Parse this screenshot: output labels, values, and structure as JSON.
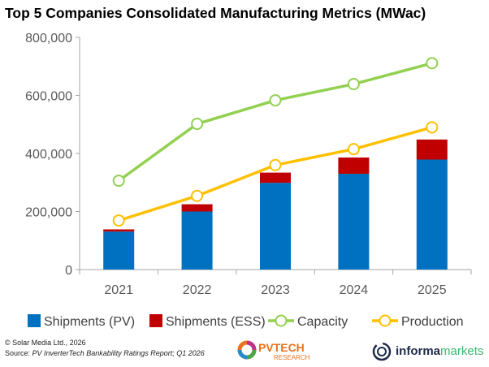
{
  "chart_data": {
    "type": "bar+line",
    "title": "Top 5 Companies Consolidated Manufacturing Metrics (MWac)",
    "categories": [
      "2021",
      "2022",
      "2023",
      "2024",
      "2025"
    ],
    "ylim": [
      0,
      800000
    ],
    "yticks": [
      0,
      200000,
      400000,
      600000,
      800000
    ],
    "ytick_labels": [
      "0",
      "200,000",
      "400,000",
      "600,000",
      "800,000"
    ],
    "grid": false,
    "legend": "bottom",
    "series": [
      {
        "name": "Shipments (PV)",
        "kind": "stacked-bar",
        "color": "#0070C0",
        "values": [
          131000,
          200000,
          299000,
          330000,
          379000
        ]
      },
      {
        "name": "Shipments (ESS)",
        "kind": "stacked-bar",
        "color": "#C00000",
        "values": [
          7500,
          25000,
          35000,
          56000,
          69000
        ]
      },
      {
        "name": "Capacity",
        "kind": "line",
        "color": "#92D050",
        "values": [
          306000,
          502000,
          583000,
          639000,
          711000
        ]
      },
      {
        "name": "Production",
        "kind": "line",
        "color": "#FFC000",
        "values": [
          169000,
          254000,
          360000,
          415000,
          490000
        ]
      }
    ]
  },
  "footer": {
    "copyright": "© Solar Media Ltd., 2026",
    "source_label": "Source: ",
    "source_text": "PV InverterTech Bankability Ratings Report; Q1 2026"
  },
  "logos": {
    "pvtech_main": "PVTECH",
    "pvtech_sub": "RESEARCH",
    "informa_1": "informa",
    "informa_2": "markets"
  }
}
